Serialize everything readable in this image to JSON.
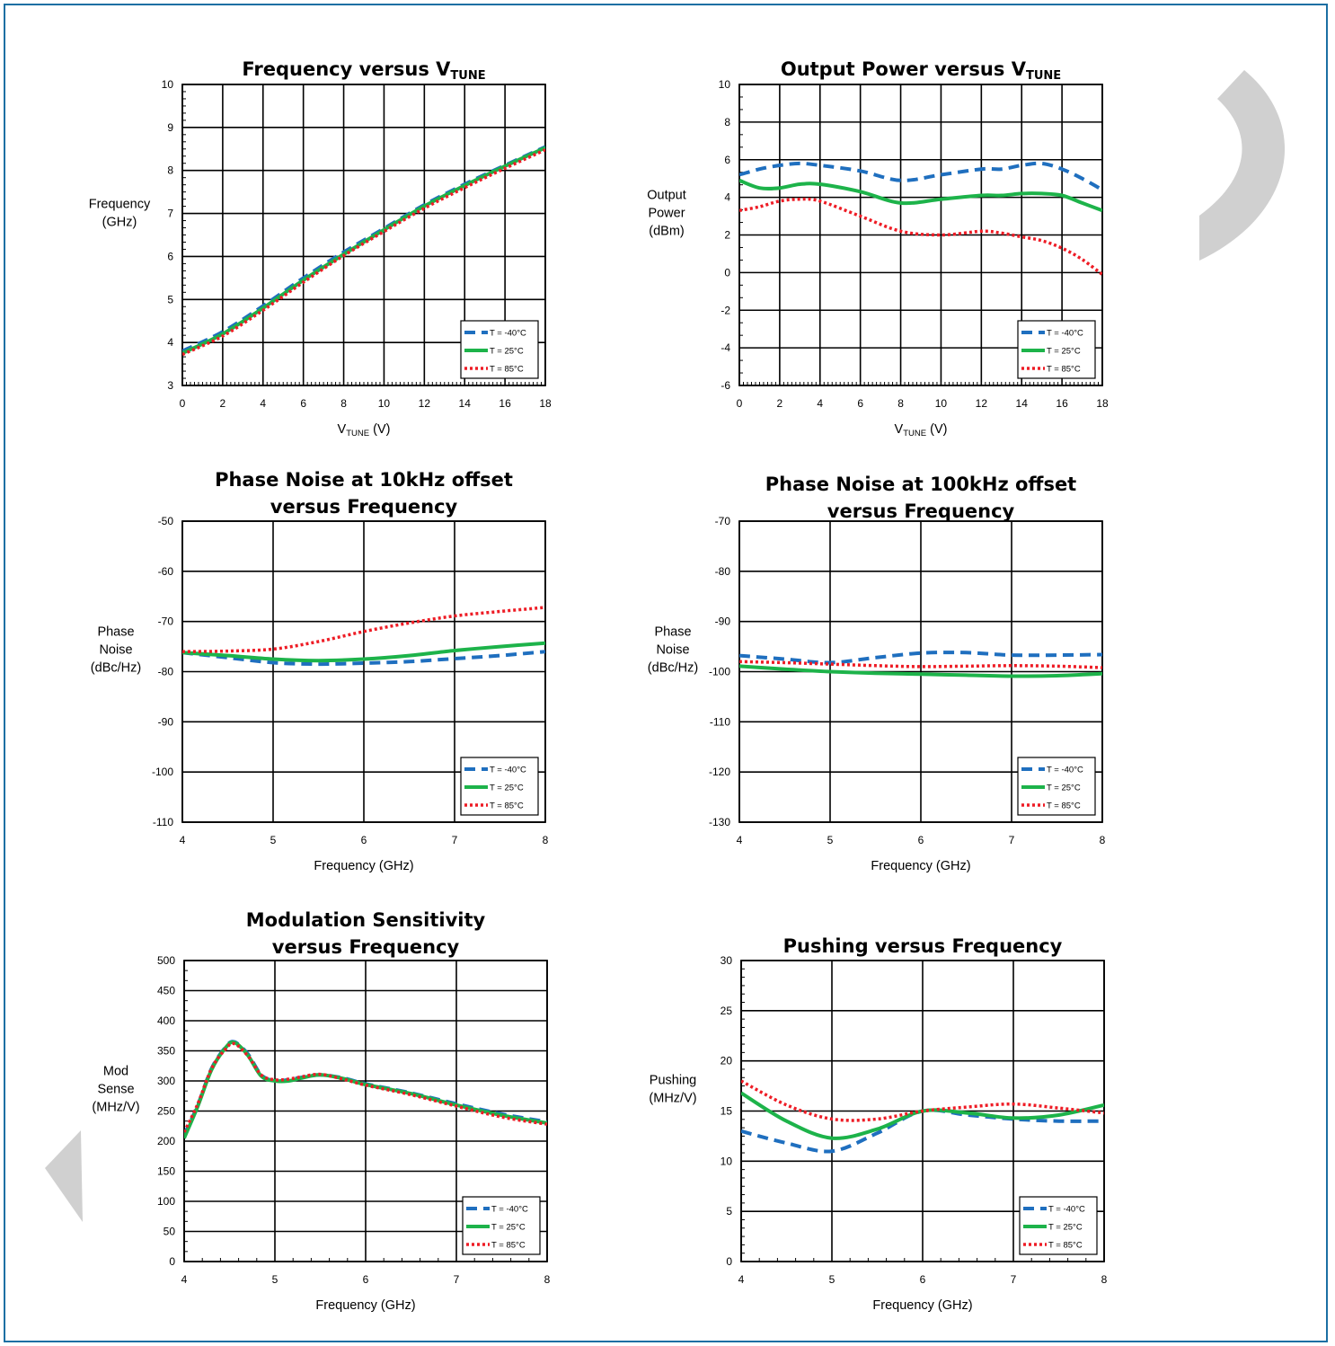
{
  "colors": {
    "frame": "#1b6fa3",
    "series_m40": "#1f6fbf",
    "series_25": "#1db34a",
    "series_85": "#ee1c25",
    "watermark": "#d0d0d0"
  },
  "legend_labels": [
    "T = -40°C",
    "T = 25°C",
    "T = 85°C"
  ],
  "chart_data": [
    {
      "type": "line",
      "title": "Frequency versus V",
      "title_sub": "TUNE",
      "xlabel": "V",
      "xlabel_sub": "TUNE",
      "xlabel_suffix": " (V)",
      "ylabel": [
        "Frequency",
        "(GHz)"
      ],
      "xlim": [
        0,
        18
      ],
      "ylim": [
        3,
        10
      ],
      "xticks": [
        0,
        2,
        4,
        6,
        8,
        10,
        12,
        14,
        16,
        18
      ],
      "yticks": [
        3,
        4,
        5,
        6,
        7,
        8,
        9,
        10
      ],
      "grid": true,
      "legend": "bottom-right",
      "series": [
        {
          "name": "T = -40°C",
          "x": [
            0,
            2,
            4,
            6,
            8,
            10,
            12,
            14,
            16,
            18
          ],
          "y": [
            3.8,
            4.25,
            4.85,
            5.5,
            6.1,
            6.65,
            7.2,
            7.68,
            8.12,
            8.55
          ]
        },
        {
          "name": "T = 25°C",
          "x": [
            0,
            2,
            4,
            6,
            8,
            10,
            12,
            14,
            16,
            18
          ],
          "y": [
            3.75,
            4.2,
            4.8,
            5.45,
            6.05,
            6.62,
            7.17,
            7.65,
            8.1,
            8.53
          ]
        },
        {
          "name": "T = 85°C",
          "x": [
            0,
            2,
            4,
            6,
            8,
            10,
            12,
            14,
            16,
            18
          ],
          "y": [
            3.72,
            4.15,
            4.75,
            5.4,
            6.02,
            6.58,
            7.12,
            7.6,
            8.05,
            8.48
          ]
        }
      ]
    },
    {
      "type": "line",
      "title": "Output Power versus V",
      "title_sub": "TUNE",
      "xlabel": "V",
      "xlabel_sub": "TUNE",
      "xlabel_suffix": " (V)",
      "ylabel": [
        "Output",
        "Power",
        "(dBm)"
      ],
      "xlim": [
        0,
        18
      ],
      "ylim": [
        -6,
        10
      ],
      "xticks": [
        0,
        2,
        4,
        6,
        8,
        10,
        12,
        14,
        16,
        18
      ],
      "yticks": [
        -6,
        -4,
        -2,
        0,
        2,
        4,
        6,
        8,
        10
      ],
      "grid": true,
      "legend": "bottom-right",
      "series": [
        {
          "name": "T = -40°C",
          "x": [
            0,
            1,
            2,
            3,
            4,
            6,
            8,
            10,
            12,
            13,
            14,
            15,
            16,
            17,
            18
          ],
          "y": [
            5.2,
            5.5,
            5.7,
            5.8,
            5.7,
            5.4,
            4.9,
            5.2,
            5.5,
            5.5,
            5.7,
            5.8,
            5.5,
            5.0,
            4.4
          ]
        },
        {
          "name": "T = 25°C",
          "x": [
            0,
            1,
            2,
            3,
            4,
            6,
            8,
            10,
            12,
            13,
            14,
            15,
            16,
            17,
            18
          ],
          "y": [
            4.9,
            4.5,
            4.5,
            4.7,
            4.7,
            4.3,
            3.7,
            3.9,
            4.1,
            4.1,
            4.2,
            4.2,
            4.1,
            3.7,
            3.3
          ]
        },
        {
          "name": "T = 85°C",
          "x": [
            0,
            1,
            2,
            3,
            4,
            6,
            8,
            10,
            12,
            13,
            14,
            15,
            16,
            17,
            18
          ],
          "y": [
            3.3,
            3.5,
            3.8,
            3.9,
            3.8,
            3.0,
            2.2,
            2.0,
            2.2,
            2.1,
            1.9,
            1.7,
            1.3,
            0.7,
            -0.1
          ]
        }
      ]
    },
    {
      "type": "line",
      "title": "Phase Noise at 10kHz offset",
      "title2": "versus  Frequency",
      "xlabel": "Frequency (GHz)",
      "ylabel": [
        "Phase",
        "Noise",
        "(dBc/Hz)"
      ],
      "xlim": [
        4,
        8
      ],
      "ylim": [
        -110,
        -50
      ],
      "xticks": [
        4,
        5,
        6,
        7,
        8
      ],
      "yticks": [
        -110,
        -100,
        -90,
        -80,
        -70,
        -60,
        -50
      ],
      "grid": true,
      "legend": "bottom-right",
      "series": [
        {
          "name": "T = -40°C",
          "x": [
            4,
            4.5,
            5,
            5.5,
            6,
            6.5,
            7,
            7.5,
            8
          ],
          "y": [
            -76.2,
            -77.2,
            -78.2,
            -78.5,
            -78.3,
            -78.0,
            -77.4,
            -76.8,
            -76.0
          ]
        },
        {
          "name": "T = 25°C",
          "x": [
            4,
            4.5,
            5,
            5.5,
            6,
            6.5,
            7,
            7.5,
            8
          ],
          "y": [
            -76.2,
            -76.8,
            -77.5,
            -77.8,
            -77.5,
            -76.8,
            -75.8,
            -75.0,
            -74.3
          ]
        },
        {
          "name": "T = 85°C",
          "x": [
            4,
            4.5,
            5,
            5.5,
            6,
            6.5,
            7,
            7.5,
            8
          ],
          "y": [
            -76.0,
            -75.9,
            -75.5,
            -74.0,
            -72.0,
            -70.3,
            -68.9,
            -68.0,
            -67.2
          ]
        }
      ]
    },
    {
      "type": "line",
      "title": "Phase Noise at 100kHz offset",
      "title2": "versus  Frequency",
      "xlabel": "Frequency (GHz)",
      "ylabel": [
        "Phase",
        "Noise",
        "(dBc/Hz)"
      ],
      "xlim": [
        4,
        8
      ],
      "ylim": [
        -130,
        -70
      ],
      "xticks": [
        4,
        5,
        6,
        7,
        8
      ],
      "yticks": [
        -130,
        -120,
        -110,
        -100,
        -90,
        -80,
        -70
      ],
      "grid": true,
      "legend": "bottom-right",
      "series": [
        {
          "name": "T = -40°C",
          "x": [
            4,
            4.5,
            5,
            5.5,
            6,
            6.5,
            7,
            7.5,
            8
          ],
          "y": [
            -96.8,
            -97.5,
            -98.2,
            -97.2,
            -96.3,
            -96.2,
            -96.7,
            -96.7,
            -96.6
          ]
        },
        {
          "name": "T = 25°C",
          "x": [
            4,
            4.5,
            5,
            5.5,
            6,
            6.5,
            7,
            7.5,
            8
          ],
          "y": [
            -98.9,
            -99.5,
            -100.0,
            -100.3,
            -100.5,
            -100.7,
            -100.9,
            -100.8,
            -100.4
          ]
        },
        {
          "name": "T = 85°C",
          "x": [
            4,
            4.5,
            5,
            5.5,
            6,
            6.5,
            7,
            7.5,
            8
          ],
          "y": [
            -98.0,
            -98.2,
            -98.5,
            -98.8,
            -99.0,
            -98.9,
            -98.8,
            -98.9,
            -99.2
          ]
        }
      ]
    },
    {
      "type": "line",
      "title": "Modulation Sensitivity",
      "title2": "versus  Frequency",
      "xlabel": "Frequency (GHz)",
      "ylabel": [
        "Mod",
        "Sense",
        "(MHz/V)"
      ],
      "xlim": [
        4,
        8
      ],
      "ylim": [
        0,
        500
      ],
      "xticks": [
        4,
        5,
        6,
        7,
        8
      ],
      "yticks": [
        0,
        50,
        100,
        150,
        200,
        250,
        300,
        350,
        400,
        450,
        500
      ],
      "grid": true,
      "legend": "bottom-right",
      "series": [
        {
          "name": "T = -40°C",
          "x": [
            4,
            4.15,
            4.3,
            4.45,
            4.55,
            4.7,
            4.85,
            5.0,
            5.15,
            5.3,
            5.5,
            5.75,
            6.0,
            6.5,
            7.0,
            7.5,
            8.0
          ],
          "y": [
            210,
            260,
            320,
            355,
            365,
            345,
            310,
            300,
            302,
            306,
            310,
            305,
            295,
            280,
            262,
            245,
            232
          ]
        },
        {
          "name": "T = 25°C",
          "x": [
            4,
            4.15,
            4.3,
            4.45,
            4.55,
            4.7,
            4.85,
            5.0,
            5.15,
            5.3,
            5.5,
            5.75,
            6.0,
            6.5,
            7.0,
            7.5,
            8.0
          ],
          "y": [
            205,
            258,
            318,
            354,
            364,
            343,
            308,
            300,
            300,
            305,
            310,
            304,
            294,
            279,
            260,
            243,
            230
          ]
        },
        {
          "name": "T = 85°C",
          "x": [
            4,
            4.15,
            4.3,
            4.45,
            4.55,
            4.7,
            4.85,
            5.0,
            5.15,
            5.3,
            5.5,
            5.75,
            6.0,
            6.5,
            7.0,
            7.5,
            8.0
          ],
          "y": [
            215,
            262,
            320,
            352,
            362,
            342,
            310,
            302,
            303,
            307,
            311,
            303,
            293,
            277,
            258,
            240,
            228
          ]
        }
      ]
    },
    {
      "type": "line",
      "title": "Pushing versus Frequency",
      "xlabel": "Frequency (GHz)",
      "ylabel": [
        "Pushing",
        "(MHz/V)"
      ],
      "xlim": [
        4,
        8
      ],
      "ylim": [
        0,
        30
      ],
      "xticks": [
        4,
        5,
        6,
        7,
        8
      ],
      "yticks": [
        0,
        5,
        10,
        15,
        20,
        25,
        30
      ],
      "grid": true,
      "legend": "bottom-right",
      "series": [
        {
          "name": "T = -40°C",
          "x": [
            4,
            4.5,
            5,
            5.5,
            6,
            6.5,
            7,
            7.5,
            8
          ],
          "y": [
            13.0,
            11.8,
            11.0,
            12.8,
            15.0,
            14.6,
            14.2,
            14.0,
            14.0
          ]
        },
        {
          "name": "T = 25°C",
          "x": [
            4,
            4.5,
            5,
            5.5,
            6,
            6.5,
            7,
            7.5,
            8
          ],
          "y": [
            16.8,
            14.0,
            12.3,
            13.2,
            15.0,
            14.8,
            14.3,
            14.6,
            15.6
          ]
        },
        {
          "name": "T = 85°C",
          "x": [
            4,
            4.5,
            5,
            5.5,
            6,
            6.5,
            7,
            7.5,
            8
          ],
          "y": [
            18.0,
            15.6,
            14.2,
            14.2,
            15.0,
            15.4,
            15.7,
            15.3,
            14.8
          ]
        }
      ]
    }
  ]
}
